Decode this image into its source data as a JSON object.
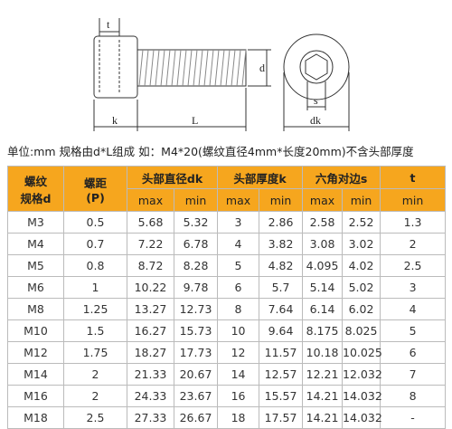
{
  "drawing": {
    "labels": {
      "t": "t",
      "d": "d",
      "k": "k",
      "L": "L",
      "s": "s",
      "dk": "dk"
    }
  },
  "note": "单位:mm 规格由d*L组成 如：M4*20(螺纹直径4mm*长度20mm)不含头部厚度",
  "table": {
    "groups": [
      [
        "螺纹",
        "规格d"
      ],
      [
        "螺距",
        "(P)"
      ],
      "头部直径dk",
      "头部厚度k",
      "六角对边s",
      "t"
    ],
    "subheaders": [
      "max",
      "min",
      "max",
      "min",
      "max",
      "min",
      "min"
    ],
    "rows": [
      [
        "M3",
        "0.5",
        "5.68",
        "5.32",
        "3",
        "2.86",
        "2.58",
        "2.52",
        "1.3"
      ],
      [
        "M4",
        "0.7",
        "7.22",
        "6.78",
        "4",
        "3.82",
        "3.08",
        "3.02",
        "2"
      ],
      [
        "M5",
        "0.8",
        "8.72",
        "8.28",
        "5",
        "4.82",
        "4.095",
        "4.02",
        "2.5"
      ],
      [
        "M6",
        "1",
        "10.22",
        "9.78",
        "6",
        "5.7",
        "5.14",
        "5.02",
        "3"
      ],
      [
        "M8",
        "1.25",
        "13.27",
        "12.73",
        "8",
        "7.64",
        "6.14",
        "6.02",
        "4"
      ],
      [
        "M10",
        "1.5",
        "16.27",
        "15.73",
        "10",
        "9.64",
        "8.175",
        "8.025",
        "5"
      ],
      [
        "M12",
        "1.75",
        "18.27",
        "17.73",
        "12",
        "11.57",
        "10.18",
        "10.025",
        "6"
      ],
      [
        "M14",
        "2",
        "21.33",
        "20.67",
        "14",
        "12.57",
        "12.21",
        "12.032",
        "7"
      ],
      [
        "M16",
        "2",
        "24.33",
        "23.67",
        "16",
        "15.57",
        "14.21",
        "14.032",
        "8"
      ],
      [
        "M18",
        "2.5",
        "27.33",
        "26.67",
        "18",
        "17.57",
        "14.21",
        "14.032",
        "-"
      ]
    ]
  }
}
